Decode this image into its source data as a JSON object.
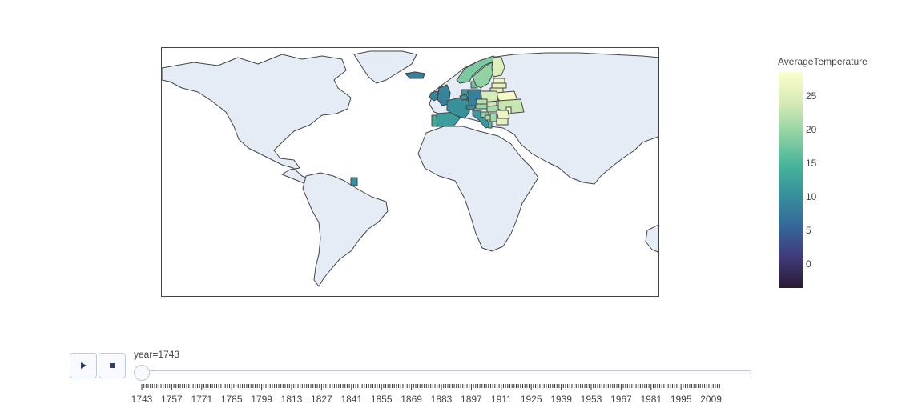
{
  "chart_data": {
    "type": "choropleth",
    "projection": "equirectangular",
    "title": "",
    "frame": {
      "year": "1743"
    },
    "locations": [
      {
        "country": "France",
        "value": 10.5
      },
      {
        "country": "Spain",
        "value": 12.0
      },
      {
        "country": "Portugal",
        "value": 13.5
      },
      {
        "country": "Italy",
        "value": 11.5
      },
      {
        "country": "United Kingdom",
        "value": 9.0
      },
      {
        "country": "Ireland",
        "value": 9.5
      },
      {
        "country": "Iceland",
        "value": 8.5
      },
      {
        "country": "Norway",
        "value": 18.0
      },
      {
        "country": "Sweden",
        "value": 19.5
      },
      {
        "country": "Finland",
        "value": 25.0
      },
      {
        "country": "Estonia",
        "value": 27.0
      },
      {
        "country": "Latvia",
        "value": 26.0
      },
      {
        "country": "Lithuania",
        "value": 25.5
      },
      {
        "country": "Denmark",
        "value": 17.0
      },
      {
        "country": "Germany",
        "value": 8.5
      },
      {
        "country": "Netherlands",
        "value": 11.0
      },
      {
        "country": "Belgium",
        "value": 11.0
      },
      {
        "country": "Switzerland",
        "value": 10.0
      },
      {
        "country": "Austria",
        "value": 20.0
      },
      {
        "country": "Czech Republic",
        "value": 22.0
      },
      {
        "country": "Poland",
        "value": 24.0
      },
      {
        "country": "Belarus",
        "value": 27.5
      },
      {
        "country": "Ukraine",
        "value": 23.0
      },
      {
        "country": "Hungary",
        "value": 21.0
      },
      {
        "country": "Slovakia",
        "value": 23.5
      },
      {
        "country": "Romania",
        "value": 26.5
      },
      {
        "country": "Moldova",
        "value": 28.0
      },
      {
        "country": "Serbia",
        "value": 20.5
      },
      {
        "country": "Croatia",
        "value": 19.0
      },
      {
        "country": "Bosnia and Herzegovina",
        "value": 21.5
      },
      {
        "country": "Bulgaria",
        "value": 25.5
      },
      {
        "country": "Albania",
        "value": 16.0
      },
      {
        "country": "French Guiana",
        "value": 10.5
      }
    ],
    "colorbar": {
      "title": "AverageTemperature",
      "range": [
        -3.5,
        28.5
      ],
      "ticks": [
        "0",
        "5",
        "10",
        "15",
        "20",
        "25"
      ],
      "tickvals": [
        0,
        5,
        10,
        15,
        20,
        25
      ],
      "colorscale": [
        "#2a1a32",
        "#403b7a",
        "#35679a",
        "#368f9b",
        "#48b59a",
        "#8fd2a2",
        "#d6ebb6",
        "#fdfdcc"
      ]
    },
    "slider": {
      "prefix": "year=",
      "current": "1743",
      "tick_labels": [
        "1743",
        "1757",
        "1771",
        "1785",
        "1799",
        "1813",
        "1827",
        "1841",
        "1855",
        "1869",
        "1883",
        "1897",
        "1911",
        "1925",
        "1939",
        "1953",
        "1967",
        "1981",
        "1995",
        "2009"
      ]
    }
  },
  "colors": {
    "land": "#e5ecf6",
    "border": "#444444",
    "button_bg": "#f8faff",
    "button_border": "#bec8d9"
  },
  "controls": {
    "play_icon": "play-icon",
    "stop_icon": "stop-icon"
  }
}
